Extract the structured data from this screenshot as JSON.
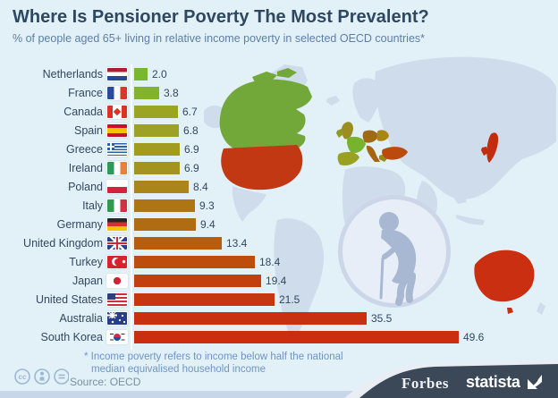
{
  "header": {
    "title": "Where Is Pensioner Poverty The Most Prevalent?",
    "subtitle": "% of people aged 65+ living in relative income poverty in selected OECD countries*"
  },
  "chart_data": {
    "type": "bar",
    "orientation": "horizontal",
    "title": "Where Is Pensioner Poverty The Most Prevalent?",
    "subtitle": "% of people aged 65+ living in relative income poverty in selected OECD countries*",
    "unit": "% of people aged 65+ in relative income poverty",
    "xlim": [
      0,
      50
    ],
    "grid": false,
    "legend": false,
    "categories": [
      "Netherlands",
      "France",
      "Canada",
      "Spain",
      "Greece",
      "Ireland",
      "Poland",
      "Italy",
      "Germany",
      "United Kingdom",
      "Turkey",
      "Japan",
      "United States",
      "Australia",
      "South Korea"
    ],
    "values": [
      2.0,
      3.8,
      6.7,
      6.8,
      6.9,
      6.9,
      8.4,
      9.3,
      9.4,
      13.4,
      18.4,
      19.4,
      21.5,
      35.5,
      49.6
    ],
    "colors": [
      "#79b72c",
      "#83b32d",
      "#9aa524",
      "#9da126",
      "#a19b22",
      "#a3941f",
      "#aa861a",
      "#ae7514",
      "#b06c11",
      "#b65e0e",
      "#bc4d0c",
      "#c2400e",
      "#c5370f",
      "#c93010",
      "#cb2d10"
    ],
    "flags": [
      "nl",
      "fr",
      "ca",
      "es",
      "gr",
      "ie",
      "pl",
      "it",
      "de",
      "uk",
      "tr",
      "jp",
      "us",
      "au",
      "kr"
    ]
  },
  "footnote": {
    "line1": "* Income poverty refers to income below half the national",
    "line2": "median equivalised household income"
  },
  "source": "Source: OECD",
  "branding": {
    "forbes": "Forbes",
    "statista": "statista"
  },
  "license": {
    "icons": [
      "cc",
      "by",
      "nd"
    ]
  },
  "colors": {
    "background": "#e2f1f8",
    "title": "#2e4862",
    "footer": "#3b4858",
    "map_land": "#cfdcec"
  }
}
